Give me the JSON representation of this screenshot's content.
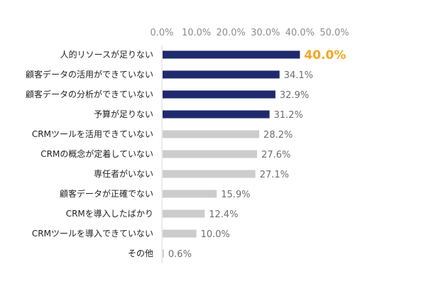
{
  "chart_data": {
    "type": "bar",
    "orientation": "horizontal",
    "title": "",
    "xlabel": "",
    "ylabel": "",
    "xlim": [
      0,
      50
    ],
    "x_ticks": [
      "0.0%",
      "10.0%",
      "20.0%",
      "30.0%",
      "40.0%",
      "50.0%"
    ],
    "x_axis_position": "top",
    "grid": false,
    "legend": "none",
    "categories": [
      "人的リソースが足りない",
      "顧客データの活用ができていない",
      "顧客データの分析ができていない",
      "予算が足りない",
      "CRMツールを活用できていない",
      "CRMの概念が定着していない",
      "専任者がいない",
      "顧客データが正確でない",
      "CRMを導入したばかり",
      "CRMツールを導入できていない",
      "その他"
    ],
    "values": [
      40.0,
      34.1,
      32.9,
      31.2,
      28.2,
      27.6,
      27.1,
      15.9,
      12.4,
      10.0,
      0.6
    ],
    "value_labels": [
      "40.0%",
      "34.1%",
      "32.9%",
      "31.2%",
      "28.2%",
      "27.6%",
      "27.1%",
      "15.9%",
      "12.4%",
      "10.0%",
      "0.6%"
    ],
    "highlight_count": 4,
    "colors": {
      "highlight_bar": "#1f2a6e",
      "other_bar": "#cccccc",
      "top_label": "#f5a623",
      "axis_line": "#d9d9d9"
    }
  }
}
